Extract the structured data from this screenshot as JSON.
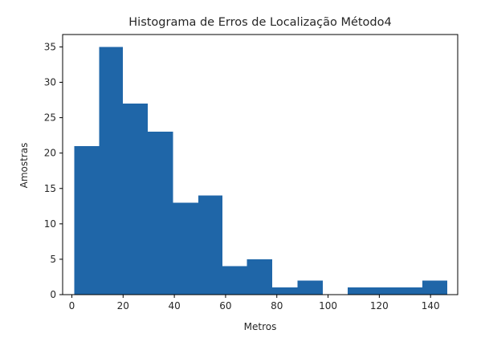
{
  "chart_data": {
    "type": "bar",
    "title": "Histograma de Erros de Localização Método4",
    "xlabel": "Metros",
    "ylabel": "Amostras",
    "xlim": [
      -3.6,
      150.6
    ],
    "ylim": [
      0,
      36.75
    ],
    "xticks": [
      0,
      20,
      40,
      60,
      80,
      100,
      120,
      140
    ],
    "yticks": [
      0,
      5,
      10,
      15,
      20,
      25,
      30,
      35
    ],
    "bin_edges": [
      0.9,
      10.6,
      19.9,
      29.6,
      39.5,
      49.4,
      58.8,
      68.4,
      78.2,
      88.0,
      97.9,
      107.6,
      117.4,
      127.1,
      136.8,
      146.6
    ],
    "values": [
      21,
      35,
      27,
      23,
      13,
      14,
      4,
      5,
      1,
      2,
      0,
      1,
      1,
      1,
      2
    ],
    "bar_color": "#1f66a8",
    "grid": false,
    "legend": false
  }
}
